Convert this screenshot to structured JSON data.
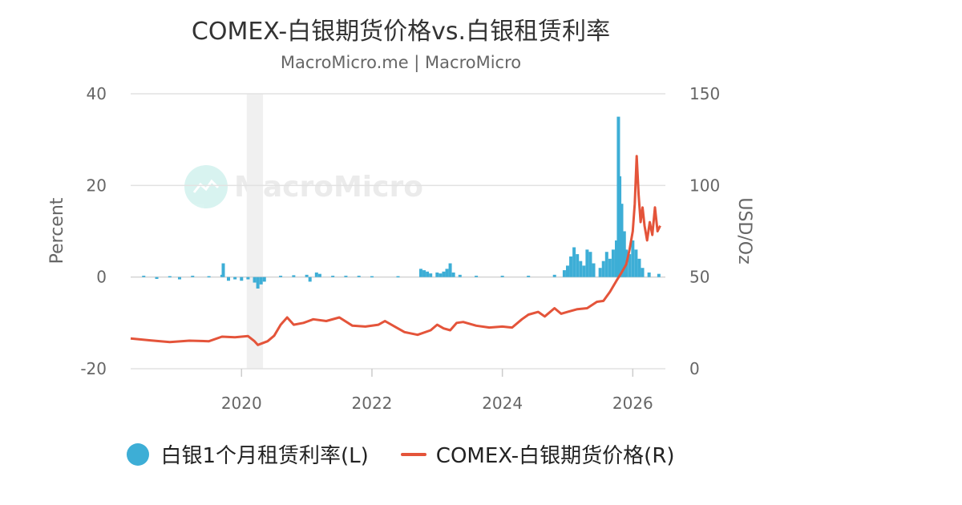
{
  "chart_data": {
    "type": "bar+line",
    "title": "COMEX-白银期货价格vs.白银租赁利率",
    "subtitle": "MacroMicro.me | MacroMicro",
    "watermark": "MacroMicro",
    "y_left": {
      "label": "Percent",
      "range": [
        -20,
        40
      ],
      "ticks": [
        "40",
        "20",
        "0",
        "-20"
      ]
    },
    "y_right": {
      "label": "USD/Oz",
      "range": [
        0,
        150
      ],
      "ticks": [
        "150",
        "100",
        "50",
        "0"
      ]
    },
    "x": {
      "range": [
        2018.3,
        2026.5
      ],
      "ticks": [
        "2020",
        "2022",
        "2024",
        "2026"
      ]
    },
    "recession_shading": [
      2020.08,
      2020.33
    ],
    "series": [
      {
        "name": "白银1个月租赁利率(L)",
        "type": "bar",
        "axis": "left",
        "color": "#3daed6",
        "points": [
          [
            2018.5,
            0.3
          ],
          [
            2018.7,
            -0.4
          ],
          [
            2018.9,
            0.2
          ],
          [
            2019.05,
            -0.5
          ],
          [
            2019.25,
            0.3
          ],
          [
            2019.5,
            0.2
          ],
          [
            2019.7,
            0.5
          ],
          [
            2019.72,
            3.0
          ],
          [
            2019.8,
            -0.8
          ],
          [
            2019.9,
            -0.5
          ],
          [
            2020.0,
            -0.8
          ],
          [
            2020.1,
            -0.5
          ],
          [
            2020.2,
            -1.2
          ],
          [
            2020.25,
            -2.5
          ],
          [
            2020.3,
            -1.6
          ],
          [
            2020.35,
            -1.0
          ],
          [
            2020.6,
            0.3
          ],
          [
            2020.8,
            0.4
          ],
          [
            2021.0,
            0.5
          ],
          [
            2021.05,
            -1.0
          ],
          [
            2021.15,
            1.0
          ],
          [
            2021.2,
            0.7
          ],
          [
            2021.4,
            0.3
          ],
          [
            2021.6,
            0.3
          ],
          [
            2021.8,
            0.3
          ],
          [
            2022.0,
            0.2
          ],
          [
            2022.4,
            0.2
          ],
          [
            2022.75,
            1.8
          ],
          [
            2022.8,
            1.5
          ],
          [
            2022.85,
            1.2
          ],
          [
            2022.9,
            0.8
          ],
          [
            2023.0,
            1.0
          ],
          [
            2023.05,
            0.8
          ],
          [
            2023.1,
            1.2
          ],
          [
            2023.15,
            1.8
          ],
          [
            2023.2,
            3.0
          ],
          [
            2023.25,
            1.0
          ],
          [
            2023.35,
            0.5
          ],
          [
            2023.6,
            0.3
          ],
          [
            2024.0,
            0.3
          ],
          [
            2024.4,
            0.3
          ],
          [
            2024.8,
            0.5
          ],
          [
            2024.95,
            1.5
          ],
          [
            2025.0,
            2.5
          ],
          [
            2025.05,
            4.5
          ],
          [
            2025.1,
            6.5
          ],
          [
            2025.15,
            5.0
          ],
          [
            2025.2,
            3.5
          ],
          [
            2025.25,
            2.5
          ],
          [
            2025.3,
            6.0
          ],
          [
            2025.35,
            5.5
          ],
          [
            2025.4,
            3.0
          ],
          [
            2025.5,
            2.0
          ],
          [
            2025.55,
            3.5
          ],
          [
            2025.6,
            5.5
          ],
          [
            2025.65,
            4.0
          ],
          [
            2025.7,
            6.0
          ],
          [
            2025.75,
            8.0
          ],
          [
            2025.78,
            35.0
          ],
          [
            2025.8,
            22.0
          ],
          [
            2025.83,
            16.0
          ],
          [
            2025.87,
            10.0
          ],
          [
            2025.9,
            6.0
          ],
          [
            2025.95,
            5.0
          ],
          [
            2026.0,
            8.0
          ],
          [
            2026.05,
            6.0
          ],
          [
            2026.1,
            4.0
          ],
          [
            2026.15,
            2.0
          ],
          [
            2026.25,
            1.0
          ],
          [
            2026.4,
            0.7
          ]
        ]
      },
      {
        "name": "COMEX-白银期货价格(R)",
        "type": "line",
        "axis": "right",
        "color": "#e4543a",
        "points": [
          [
            2018.3,
            16.5
          ],
          [
            2018.6,
            15.5
          ],
          [
            2018.9,
            14.5
          ],
          [
            2019.2,
            15.3
          ],
          [
            2019.5,
            15.0
          ],
          [
            2019.7,
            17.5
          ],
          [
            2019.9,
            17.2
          ],
          [
            2020.1,
            17.8
          ],
          [
            2020.2,
            15.0
          ],
          [
            2020.25,
            13.0
          ],
          [
            2020.4,
            15.0
          ],
          [
            2020.5,
            18.0
          ],
          [
            2020.6,
            24.0
          ],
          [
            2020.7,
            28.0
          ],
          [
            2020.8,
            24.0
          ],
          [
            2020.95,
            25.0
          ],
          [
            2021.1,
            27.0
          ],
          [
            2021.3,
            26.0
          ],
          [
            2021.5,
            28.0
          ],
          [
            2021.7,
            23.5
          ],
          [
            2021.9,
            23.0
          ],
          [
            2022.1,
            24.0
          ],
          [
            2022.2,
            26.0
          ],
          [
            2022.35,
            23.0
          ],
          [
            2022.5,
            20.0
          ],
          [
            2022.7,
            18.5
          ],
          [
            2022.9,
            21.0
          ],
          [
            2023.0,
            24.0
          ],
          [
            2023.1,
            22.0
          ],
          [
            2023.2,
            21.0
          ],
          [
            2023.3,
            25.0
          ],
          [
            2023.4,
            25.5
          ],
          [
            2023.6,
            23.5
          ],
          [
            2023.8,
            22.5
          ],
          [
            2024.0,
            23.0
          ],
          [
            2024.15,
            22.5
          ],
          [
            2024.3,
            27.0
          ],
          [
            2024.4,
            29.5
          ],
          [
            2024.55,
            31.0
          ],
          [
            2024.65,
            28.5
          ],
          [
            2024.8,
            33.0
          ],
          [
            2024.9,
            30.0
          ],
          [
            2025.0,
            31.0
          ],
          [
            2025.15,
            32.5
          ],
          [
            2025.3,
            33.0
          ],
          [
            2025.45,
            36.5
          ],
          [
            2025.55,
            37.0
          ],
          [
            2025.65,
            42.0
          ],
          [
            2025.75,
            48.0
          ],
          [
            2025.82,
            52.0
          ],
          [
            2025.9,
            57.0
          ],
          [
            2025.95,
            65.0
          ],
          [
            2026.0,
            75.0
          ],
          [
            2026.03,
            90.0
          ],
          [
            2026.06,
            116.0
          ],
          [
            2026.09,
            95.0
          ],
          [
            2026.12,
            80.0
          ],
          [
            2026.15,
            88.0
          ],
          [
            2026.18,
            78.0
          ],
          [
            2026.22,
            70.0
          ],
          [
            2026.26,
            80.0
          ],
          [
            2026.3,
            73.0
          ],
          [
            2026.34,
            88.0
          ],
          [
            2026.38,
            75.0
          ],
          [
            2026.42,
            78.0
          ]
        ]
      }
    ],
    "legend": {
      "placement": "bottom-center"
    }
  }
}
